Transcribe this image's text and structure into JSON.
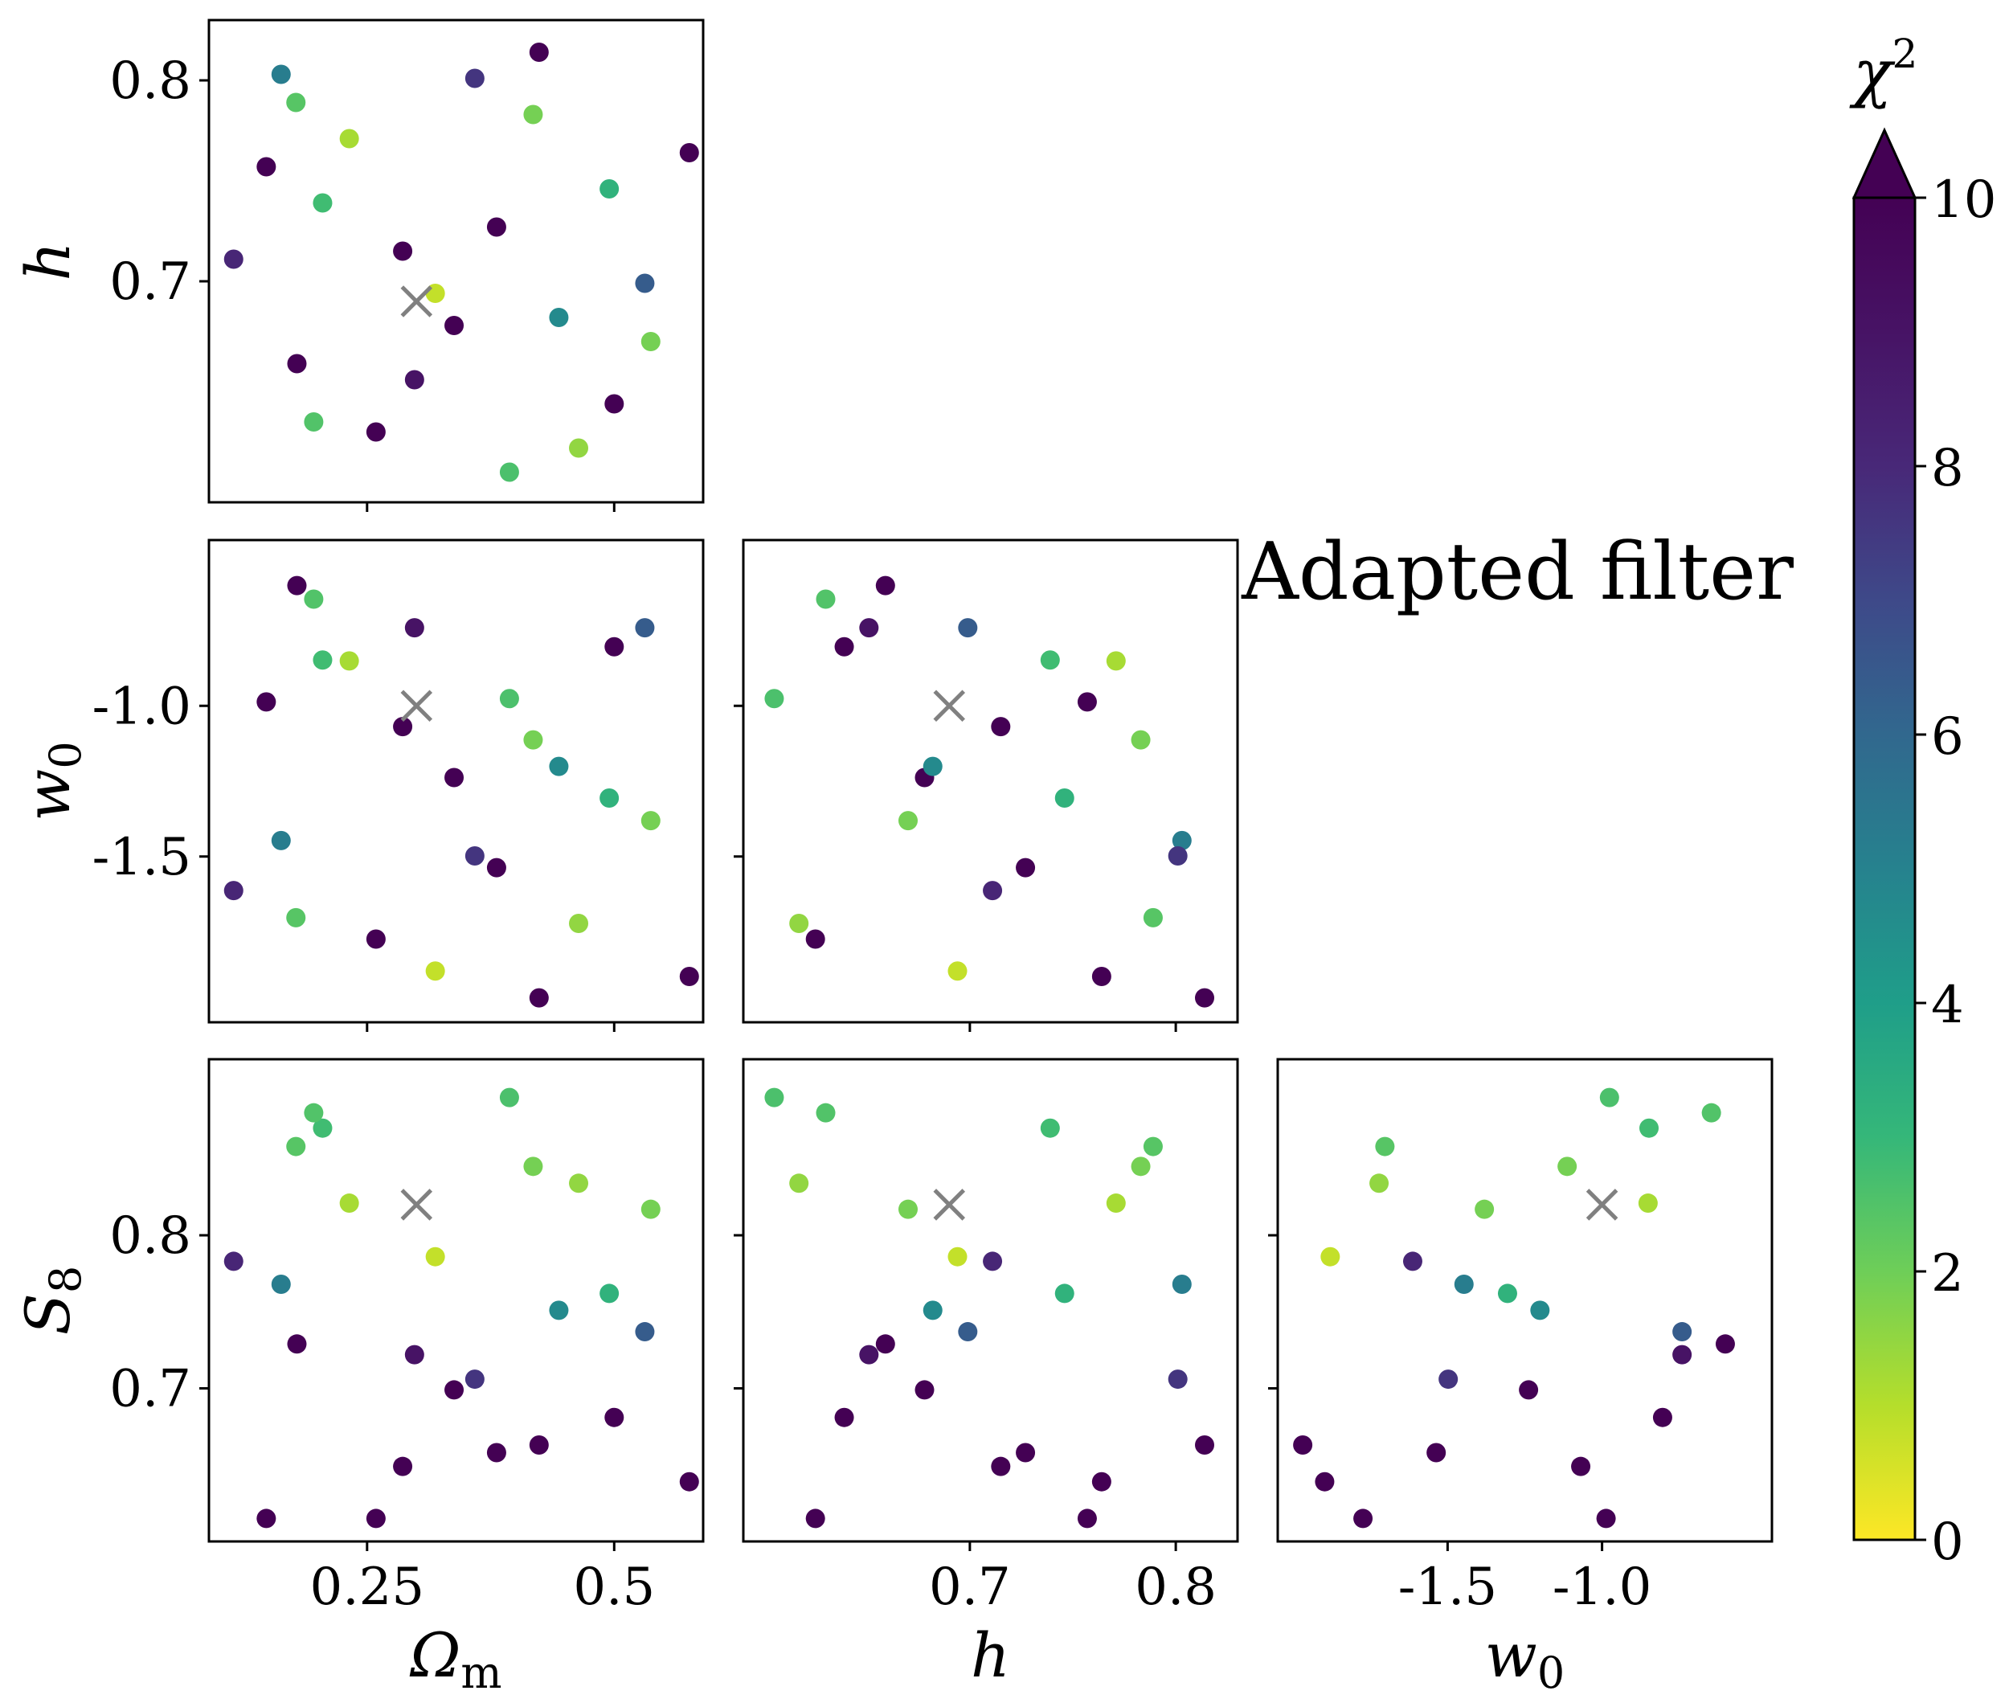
{
  "chart_data": {
    "type": "scatter",
    "layout": "corner-plot",
    "annotation": "Adapted filter",
    "parameters": [
      {
        "key": "Om",
        "label": "Ω",
        "label_sub": "m",
        "range": [
          0.09,
          0.59
        ],
        "ticks": [
          {
            "v": 0.25,
            "label": "0.25"
          },
          {
            "v": 0.5,
            "label": "0.5"
          }
        ]
      },
      {
        "key": "h",
        "label": "h",
        "label_sub": "",
        "range": [
          0.59,
          0.83
        ],
        "ticks": [
          {
            "v": 0.7,
            "label": "0.7"
          },
          {
            "v": 0.8,
            "label": "0.8"
          }
        ]
      },
      {
        "key": "w0",
        "label": "w",
        "label_sub": "0",
        "range": [
          -2.05,
          -0.45
        ],
        "ticks": [
          {
            "v": -1.5,
            "label": "-1.5"
          },
          {
            "v": -1.0,
            "label": "-1.0"
          }
        ]
      },
      {
        "key": "S8",
        "label": "S",
        "label_sub": "8",
        "range": [
          0.6,
          0.915
        ],
        "ticks": [
          {
            "v": 0.7,
            "label": "0.7"
          },
          {
            "v": 0.8,
            "label": "0.8"
          }
        ]
      }
    ],
    "fiducial": {
      "Om": 0.3,
      "h": 0.69,
      "w0": -1.0,
      "S8": 0.82
    },
    "colorbar": {
      "label": "χ",
      "label_sup": "2",
      "cmap": "viridis_r",
      "range": [
        0,
        10
      ],
      "ticks": [
        {
          "v": 0,
          "label": "0"
        },
        {
          "v": 2,
          "label": "2"
        },
        {
          "v": 4,
          "label": "4"
        },
        {
          "v": 6,
          "label": "6"
        },
        {
          "v": 8,
          "label": "8"
        },
        {
          "v": 10,
          "label": "10"
        }
      ],
      "extend": "max"
    },
    "points": [
      {
        "Om": 0.163,
        "h": 0.803,
        "w0": -1.447,
        "S8": 0.768,
        "chi2": 5.2
      },
      {
        "Om": 0.178,
        "h": 0.789,
        "w0": -1.703,
        "S8": 0.858,
        "chi2": 2.4
      },
      {
        "Om": 0.148,
        "h": 0.757,
        "w0": -0.987,
        "S8": 0.615,
        "chi2": 10.5
      },
      {
        "Om": 0.115,
        "h": 0.711,
        "w0": -1.613,
        "S8": 0.783,
        "chi2": 8.1
      },
      {
        "Om": 0.205,
        "h": 0.739,
        "w0": -0.848,
        "S8": 0.87,
        "chi2": 2.8
      },
      {
        "Om": 0.232,
        "h": 0.771,
        "w0": -0.851,
        "S8": 0.821,
        "chi2": 1.2
      },
      {
        "Om": 0.179,
        "h": 0.659,
        "w0": -0.601,
        "S8": 0.729,
        "chi2": 10.5
      },
      {
        "Om": 0.196,
        "h": 0.63,
        "w0": -0.646,
        "S8": 0.88,
        "chi2": 2.5
      },
      {
        "Om": 0.259,
        "h": 0.625,
        "w0": -1.774,
        "S8": 0.615,
        "chi2": 10.5
      },
      {
        "Om": 0.298,
        "h": 0.651,
        "w0": -0.741,
        "S8": 0.722,
        "chi2": 9.0
      },
      {
        "Om": 0.286,
        "h": 0.715,
        "w0": -1.069,
        "S8": 0.649,
        "chi2": 10.5
      },
      {
        "Om": 0.319,
        "h": 0.694,
        "w0": -1.88,
        "S8": 0.786,
        "chi2": 0.8
      },
      {
        "Om": 0.338,
        "h": 0.678,
        "w0": -1.238,
        "S8": 0.699,
        "chi2": 10.2
      },
      {
        "Om": 0.359,
        "h": 0.801,
        "w0": -1.498,
        "S8": 0.706,
        "chi2": 7.6
      },
      {
        "Om": 0.381,
        "h": 0.727,
        "w0": -1.537,
        "S8": 0.658,
        "chi2": 10.3
      },
      {
        "Om": 0.394,
        "h": 0.605,
        "w0": -0.976,
        "S8": 0.89,
        "chi2": 2.6
      },
      {
        "Om": 0.418,
        "h": 0.783,
        "w0": -1.113,
        "S8": 0.845,
        "chi2": 1.9
      },
      {
        "Om": 0.424,
        "h": 0.814,
        "w0": -1.969,
        "S8": 0.663,
        "chi2": 10.5
      },
      {
        "Om": 0.444,
        "h": 0.682,
        "w0": -1.201,
        "S8": 0.751,
        "chi2": 4.7
      },
      {
        "Om": 0.464,
        "h": 0.617,
        "w0": -1.722,
        "S8": 0.834,
        "chi2": 1.5
      },
      {
        "Om": 0.495,
        "h": 0.746,
        "w0": -1.306,
        "S8": 0.762,
        "chi2": 3.2
      },
      {
        "Om": 0.5,
        "h": 0.639,
        "w0": -0.804,
        "S8": 0.681,
        "chi2": 10.5
      },
      {
        "Om": 0.531,
        "h": 0.699,
        "w0": -0.741,
        "S8": 0.737,
        "chi2": 6.4
      },
      {
        "Om": 0.537,
        "h": 0.67,
        "w0": -1.381,
        "S8": 0.817,
        "chi2": 1.9
      },
      {
        "Om": 0.576,
        "h": 0.764,
        "w0": -1.898,
        "S8": 0.639,
        "chi2": 10.5
      }
    ]
  }
}
